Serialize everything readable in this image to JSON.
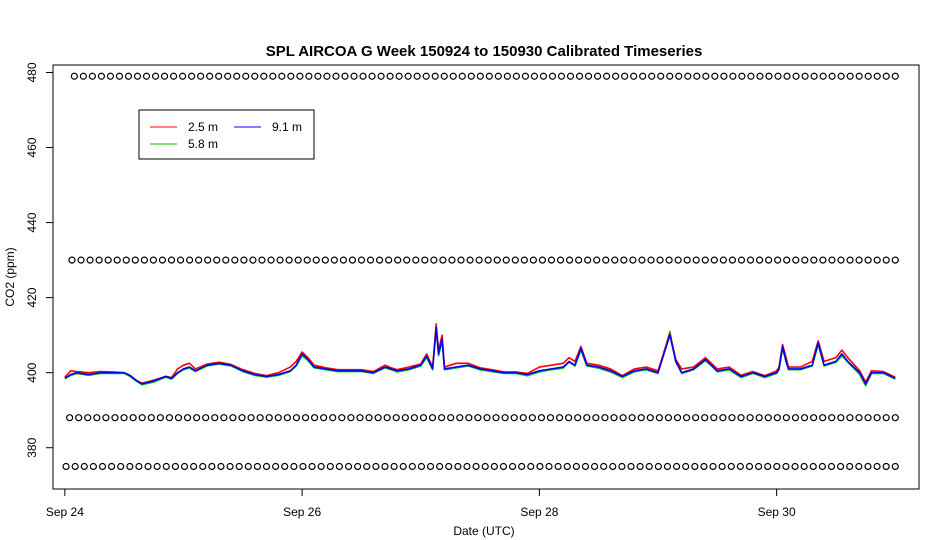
{
  "chart_data": {
    "type": "line",
    "title": "SPL AIRCOA G  Week 150924 to 150930  Calibrated Timeseries",
    "xlabel": "Date (UTC)",
    "ylabel": "CO2 (ppm)",
    "x_unit": "days",
    "x_start": "Sep 24",
    "xlim": [
      -0.1,
      7.2
    ],
    "ylim": [
      369,
      482
    ],
    "x_ticks": [
      {
        "value": 0,
        "label": "Sep 24"
      },
      {
        "value": 2,
        "label": "Sep 26"
      },
      {
        "value": 4,
        "label": "Sep 28"
      },
      {
        "value": 6,
        "label": "Sep 30"
      }
    ],
    "y_ticks": [
      380,
      400,
      420,
      440,
      460,
      480
    ],
    "grid": false,
    "legend_position": "top-left",
    "legend": [
      {
        "label": "2.5 m",
        "color": "#ff0000"
      },
      {
        "label": "5.8 m",
        "color": "#00cd00"
      },
      {
        "label": "9.1 m",
        "color": "#0000ff"
      }
    ],
    "series": [
      {
        "name": "9.1 m",
        "color": "#0000ff",
        "x": [
          0,
          0.05,
          0.1,
          0.2,
          0.3,
          0.4,
          0.5,
          0.55,
          0.6,
          0.65,
          0.75,
          0.85,
          0.9,
          0.95,
          1.0,
          1.05,
          1.1,
          1.2,
          1.3,
          1.4,
          1.5,
          1.6,
          1.7,
          1.8,
          1.9,
          1.95,
          2.0,
          2.05,
          2.1,
          2.2,
          2.3,
          2.4,
          2.5,
          2.6,
          2.7,
          2.75,
          2.8,
          2.9,
          3.0,
          3.05,
          3.1,
          3.13,
          3.15,
          3.18,
          3.2,
          3.3,
          3.4,
          3.5,
          3.6,
          3.7,
          3.8,
          3.9,
          4.0,
          4.1,
          4.2,
          4.25,
          4.3,
          4.35,
          4.4,
          4.5,
          4.6,
          4.7,
          4.8,
          4.9,
          5.0,
          5.1,
          5.15,
          5.2,
          5.3,
          5.4,
          5.45,
          5.5,
          5.6,
          5.7,
          5.8,
          5.9,
          6.0,
          6.02,
          6.05,
          6.08,
          6.1,
          6.2,
          6.3,
          6.35,
          6.4,
          6.5,
          6.55,
          6.6,
          6.7,
          6.75,
          6.8,
          6.9,
          7.0
        ],
        "y": [
          398.5,
          399.5,
          400,
          399.5,
          400,
          400,
          400,
          399.2,
          398,
          397,
          397.8,
          399,
          398.5,
          400,
          401,
          401.5,
          400.5,
          402,
          402.5,
          402,
          400.5,
          399.5,
          399,
          399.5,
          400.5,
          402,
          405,
          403.5,
          401.5,
          401,
          400.5,
          400.5,
          400.5,
          400,
          401.5,
          401,
          400.5,
          401,
          402,
          404.5,
          401,
          412,
          405,
          409,
          401,
          401.5,
          402,
          401,
          400.5,
          400,
          400,
          399.5,
          400.5,
          401,
          401.5,
          403,
          402,
          406.5,
          402,
          401.5,
          400.5,
          399,
          400.5,
          401,
          400,
          410,
          403,
          400,
          401,
          403.5,
          402,
          400.5,
          401,
          399,
          400,
          399,
          400,
          401,
          407,
          403,
          401,
          401,
          402,
          408,
          402,
          403,
          405,
          403,
          400,
          397,
          400,
          400,
          398.5
        ]
      },
      {
        "name": "2.5 m",
        "color": "#ff0000",
        "x": [
          0,
          0.05,
          0.1,
          0.2,
          0.3,
          0.4,
          0.5,
          0.55,
          0.6,
          0.65,
          0.75,
          0.85,
          0.9,
          0.95,
          1.0,
          1.05,
          1.1,
          1.2,
          1.3,
          1.4,
          1.5,
          1.6,
          1.7,
          1.8,
          1.9,
          1.95,
          2.0,
          2.05,
          2.1,
          2.2,
          2.3,
          2.4,
          2.5,
          2.6,
          2.7,
          2.75,
          2.8,
          2.9,
          3.0,
          3.05,
          3.1,
          3.13,
          3.15,
          3.18,
          3.2,
          3.3,
          3.4,
          3.5,
          3.6,
          3.7,
          3.8,
          3.9,
          4.0,
          4.1,
          4.2,
          4.25,
          4.3,
          4.35,
          4.4,
          4.5,
          4.6,
          4.7,
          4.8,
          4.9,
          5.0,
          5.1,
          5.15,
          5.2,
          5.3,
          5.4,
          5.45,
          5.5,
          5.6,
          5.7,
          5.8,
          5.9,
          6.0,
          6.02,
          6.05,
          6.08,
          6.1,
          6.2,
          6.3,
          6.35,
          6.4,
          6.5,
          6.55,
          6.6,
          6.7,
          6.75,
          6.8,
          6.9,
          7.0
        ],
        "y": [
          398.8,
          400.5,
          400.3,
          400,
          400.3,
          400.2,
          400,
          399.3,
          398,
          397.2,
          398,
          399,
          398.7,
          401,
          402,
          402.5,
          401,
          402.3,
          402.8,
          402.2,
          400.8,
          399.8,
          399.2,
          400,
          401.5,
          403,
          405.5,
          404,
          402,
          401.3,
          400.8,
          400.8,
          400.8,
          400.3,
          402,
          401.3,
          400.8,
          401.5,
          402.3,
          405,
          401.5,
          413,
          406,
          410,
          401.5,
          402.5,
          402.5,
          401.3,
          400.8,
          400.2,
          400.2,
          399.8,
          401.5,
          402,
          402.5,
          404,
          403,
          407,
          402.5,
          402,
          401,
          399.2,
          401,
          401.5,
          400.5,
          410.5,
          403.5,
          401,
          401.5,
          404,
          402.5,
          401,
          401.5,
          399.3,
          400.3,
          399.2,
          400.5,
          401.5,
          407.5,
          404,
          401.5,
          401.5,
          403,
          408.5,
          403,
          404,
          406,
          404,
          400.5,
          397.5,
          400.5,
          400.3,
          398.8
        ]
      },
      {
        "name": "5.8 m",
        "color": "#00cd00",
        "x": [
          0,
          0.05,
          0.1,
          0.2,
          0.3,
          0.4,
          0.5,
          0.55,
          0.6,
          0.65,
          0.75,
          0.85,
          0.9,
          0.95,
          1.0,
          1.05,
          1.1,
          1.2,
          1.3,
          1.4,
          1.5,
          1.6,
          1.7,
          1.8,
          1.9,
          1.95,
          2.0,
          2.05,
          2.1,
          2.2,
          2.3,
          2.4,
          2.5,
          2.6,
          2.7,
          2.75,
          2.8,
          2.9,
          3.0,
          3.05,
          3.1,
          3.13,
          3.15,
          3.18,
          3.2,
          3.3,
          3.4,
          3.5,
          3.6,
          3.7,
          3.8,
          3.9,
          4.0,
          4.1,
          4.2,
          4.25,
          4.3,
          4.35,
          4.4,
          4.5,
          4.6,
          4.7,
          4.8,
          4.9,
          5.0,
          5.1,
          5.15,
          5.2,
          5.3,
          5.4,
          5.45,
          5.5,
          5.6,
          5.7,
          5.8,
          5.9,
          6.0,
          6.02,
          6.05,
          6.08,
          6.1,
          6.2,
          6.3,
          6.35,
          6.4,
          6.5,
          6.55,
          6.6,
          6.7,
          6.75,
          6.8,
          6.9,
          7.0
        ],
        "y": [
          398.4,
          399.3,
          399.8,
          399.3,
          399.8,
          399.8,
          399.8,
          399,
          397.8,
          396.8,
          397.5,
          398.8,
          398.3,
          399.8,
          400.8,
          401.3,
          400.3,
          401.8,
          402.3,
          401.8,
          400.3,
          399.3,
          398.8,
          399.3,
          400.3,
          401.8,
          404.5,
          403.2,
          401.3,
          400.8,
          400.3,
          400.3,
          400.3,
          399.8,
          401.3,
          400.8,
          400.2,
          400.8,
          401.8,
          404,
          400.8,
          411.5,
          404.5,
          408.5,
          400.8,
          401.3,
          401.8,
          400.8,
          400.3,
          399.8,
          399.8,
          399.2,
          400.2,
          400.8,
          401.2,
          402.8,
          401.8,
          406,
          401.8,
          401.2,
          400.2,
          398.7,
          400.2,
          400.8,
          399.8,
          411,
          402.8,
          399.8,
          400.8,
          403.2,
          401.8,
          400.2,
          400.8,
          398.7,
          399.8,
          398.7,
          399.8,
          400.8,
          406.5,
          402.8,
          400.8,
          400.8,
          401.8,
          407.5,
          401.8,
          402.8,
          404.5,
          402.8,
          399.5,
          396.5,
          399.8,
          399.8,
          398.3
        ]
      }
    ],
    "marker_glyph": "o",
    "marker_rows": [
      {
        "y": 479,
        "x_start": 0.08,
        "x_end": 7.0,
        "count": 92
      },
      {
        "y": 430,
        "x_start": 0.06,
        "x_end": 7.0,
        "count": 92
      },
      {
        "y": 388,
        "x_start": 0.04,
        "x_end": 7.0,
        "count": 92
      },
      {
        "y": 375,
        "x_start": 0.01,
        "x_end": 7.0,
        "count": 92
      }
    ]
  }
}
